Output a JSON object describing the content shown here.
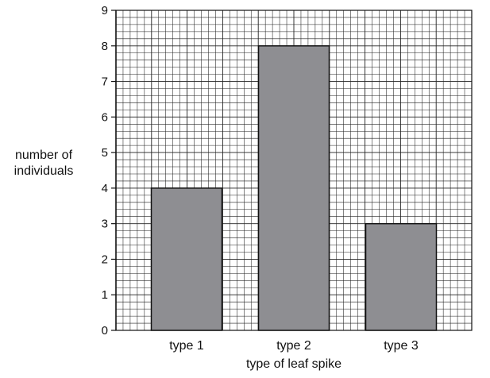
{
  "chart_data": {
    "type": "bar",
    "categories": [
      "type 1",
      "type 2",
      "type 3"
    ],
    "values": [
      4,
      8,
      3
    ],
    "xlabel": "type of leaf spike",
    "ylabel_lines": [
      "number of",
      "individuals"
    ],
    "ylim": [
      0,
      9
    ],
    "yticks": [
      0,
      1,
      2,
      3,
      4,
      5,
      6,
      7,
      8,
      9
    ],
    "grid": true,
    "bar_color": "#8e8e92"
  }
}
